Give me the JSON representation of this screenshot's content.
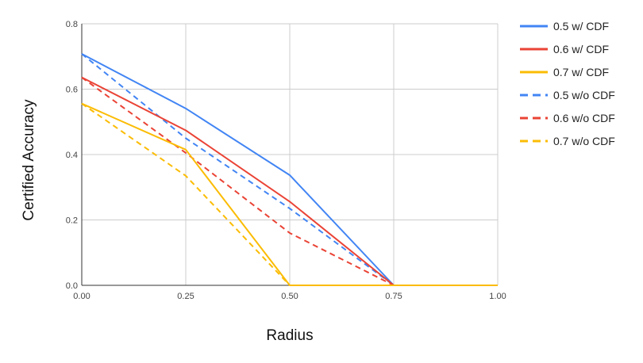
{
  "chart_data": {
    "type": "line",
    "title": "",
    "xlabel": "Radius",
    "ylabel": "Certified Accuracy",
    "xlim": [
      0,
      1
    ],
    "ylim": [
      0,
      0.8
    ],
    "x_ticks": [
      "0.00",
      "0.25",
      "0.50",
      "0.75",
      "1.00"
    ],
    "y_ticks": [
      "0.0",
      "0.2",
      "0.4",
      "0.6",
      "0.8"
    ],
    "grid": true,
    "legend_position": "right",
    "x": [
      0.0,
      0.25,
      0.5,
      0.75,
      1.0
    ],
    "series": [
      {
        "name": "0.5 w/ CDF",
        "color": "#4285F4",
        "dashed": false,
        "values": [
          0.708,
          0.541,
          0.337,
          0.0,
          0.0
        ]
      },
      {
        "name": "0.6 w/ CDF",
        "color": "#EA4335",
        "dashed": false,
        "values": [
          0.636,
          0.474,
          0.256,
          0.0,
          0.0
        ]
      },
      {
        "name": "0.7 w/ CDF",
        "color": "#FBBC04",
        "dashed": false,
        "values": [
          0.556,
          0.415,
          0.0,
          0.0,
          0.0
        ]
      },
      {
        "name": "0.5 w/o CDF",
        "color": "#4285F4",
        "dashed": true,
        "values": [
          0.708,
          0.45,
          0.235,
          0.0,
          0.0
        ]
      },
      {
        "name": "0.6 w/o CDF",
        "color": "#EA4335",
        "dashed": true,
        "values": [
          0.636,
          0.405,
          0.16,
          0.0,
          0.0
        ]
      },
      {
        "name": "0.7 w/o CDF",
        "color": "#FBBC04",
        "dashed": true,
        "values": [
          0.556,
          0.335,
          0.0,
          0.0,
          0.0
        ]
      }
    ]
  }
}
